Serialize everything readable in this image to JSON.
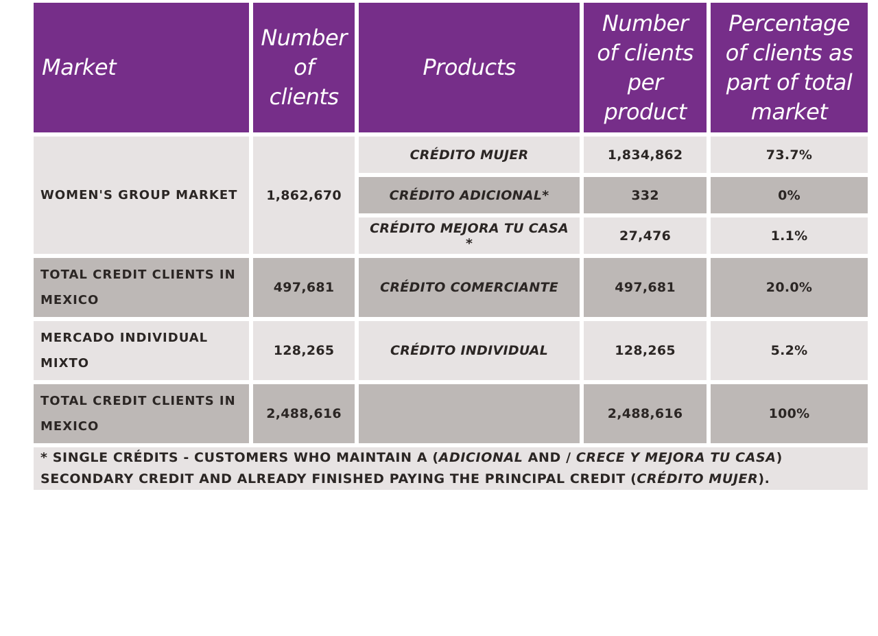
{
  "table": {
    "headers": [
      "Market",
      "Number of clients",
      "Products",
      "Number of clients per product",
      "Percentage of clients as part of total market"
    ],
    "womens_group": {
      "market": "women's group market",
      "clients": "1,862,670",
      "rows": [
        {
          "product": "Crédito Mujer",
          "per_product": "1,834,862",
          "pct": "73.7%"
        },
        {
          "product": "Crédito Adicional*",
          "per_product": "332",
          "pct": "0%"
        },
        {
          "product": "Crédito Mejora tu Casa *",
          "per_product": "27,476",
          "pct": "1.1%"
        }
      ]
    },
    "rows": [
      {
        "market": "Total credit clients in Mexico",
        "clients": "497,681",
        "product": "Crédito Comerciante",
        "per_product": "497,681",
        "pct": "20.0%",
        "shade": "dark"
      },
      {
        "market": "Mercado individual mixto",
        "clients": "128,265",
        "product": "Crédito Individual",
        "per_product": "128,265",
        "pct": "5.2%",
        "shade": "light"
      },
      {
        "market": "Total credit clients in Mexico",
        "clients": "2,488,616",
        "product": "",
        "per_product": "2,488,616",
        "pct": "100%",
        "shade": "dark"
      }
    ]
  },
  "footnote": {
    "part1": "* single crédits - customers who maintain a (",
    "adicional": "Adicional",
    "part2": " and / ",
    "crece": "Crece y Mejora tu Casa",
    "part3": ") secondary credit and already finished paying the principal credit (",
    "mujer": "Crédito Mujer",
    "part4": ")."
  },
  "colors": {
    "header": "#762e89",
    "light": "#e7e3e3",
    "dark": "#bdb8b6"
  }
}
